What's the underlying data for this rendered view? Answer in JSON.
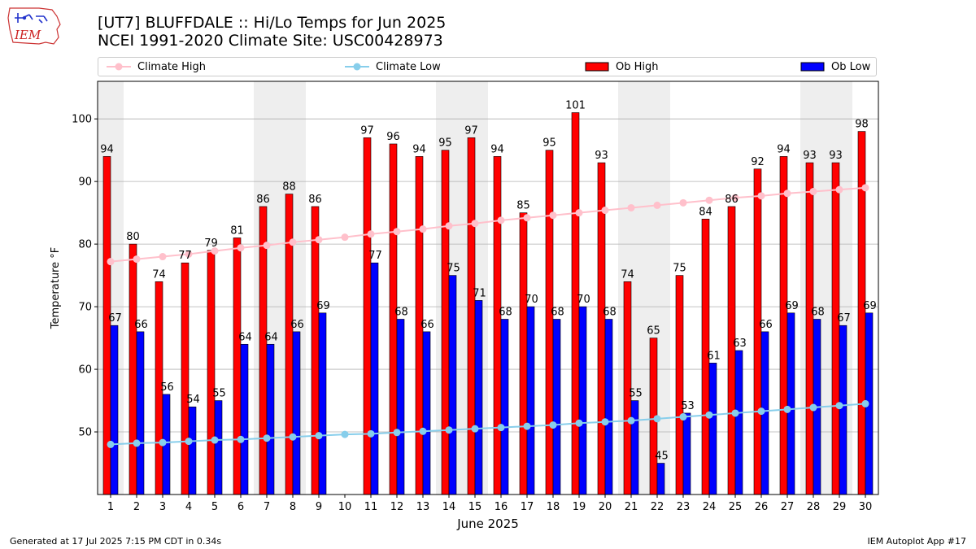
{
  "logo": {
    "text": "IEM"
  },
  "title_line1": "[UT7] BLUFFDALE  :: Hi/Lo Temps for Jun 2025",
  "title_line2": "NCEI 1991-2020 Climate Site: USC00428973",
  "footer": {
    "left": "Generated at 17 Jul 2025 7:15 PM CDT in 0.34s",
    "right": "IEM Autoplot App #17"
  },
  "colors": {
    "ob_high": "#ff0000",
    "ob_low": "#0000ff",
    "climate_high": "#ffc0cb",
    "climate_low": "#87ceeb",
    "weekend_shading": "#eeeeee",
    "grid": "#b0b0b0"
  },
  "chart_data": {
    "type": "bar",
    "xlabel": "June 2025",
    "ylabel": "Temperature °F",
    "ylim": [
      40,
      106
    ],
    "yticks": [
      50,
      60,
      70,
      80,
      90,
      100
    ],
    "grid": "horizontal",
    "legend_placement": "top (above plot)",
    "categories": [
      "1",
      "2",
      "3",
      "4",
      "5",
      "6",
      "7",
      "8",
      "9",
      "10",
      "11",
      "12",
      "13",
      "14",
      "15",
      "16",
      "17",
      "18",
      "19",
      "20",
      "21",
      "22",
      "23",
      "24",
      "25",
      "26",
      "27",
      "28",
      "29",
      "30"
    ],
    "shaded_days": [
      1,
      7,
      8,
      14,
      15,
      21,
      22,
      28,
      29
    ],
    "series": [
      {
        "name": "Climate High",
        "kind": "line",
        "values": [
          77.2,
          77.6,
          78.0,
          78.4,
          78.9,
          79.4,
          79.8,
          80.3,
          80.7,
          81.1,
          81.6,
          82.0,
          82.4,
          82.9,
          83.3,
          83.8,
          84.2,
          84.6,
          85.0,
          85.4,
          85.8,
          86.2,
          86.6,
          87.0,
          87.4,
          87.7,
          88.1,
          88.4,
          88.7,
          89.0
        ]
      },
      {
        "name": "Climate Low",
        "kind": "line",
        "values": [
          48.0,
          48.2,
          48.3,
          48.5,
          48.7,
          48.8,
          49.0,
          49.2,
          49.4,
          49.6,
          49.7,
          49.9,
          50.1,
          50.3,
          50.5,
          50.7,
          50.9,
          51.1,
          51.4,
          51.6,
          51.8,
          52.1,
          52.4,
          52.7,
          53.0,
          53.3,
          53.6,
          53.9,
          54.2,
          54.5
        ]
      },
      {
        "name": "Ob High",
        "kind": "bar",
        "values": [
          94,
          80,
          74,
          77,
          79,
          81,
          86,
          88,
          86,
          null,
          97,
          96,
          94,
          95,
          97,
          94,
          85,
          95,
          101,
          93,
          74,
          65,
          75,
          84,
          86,
          92,
          94,
          93,
          93,
          98
        ]
      },
      {
        "name": "Ob Low",
        "kind": "bar",
        "values": [
          67,
          66,
          56,
          54,
          55,
          64,
          64,
          66,
          69,
          null,
          77,
          68,
          66,
          75,
          71,
          68,
          70,
          68,
          70,
          68,
          55,
          45,
          53,
          61,
          63,
          66,
          69,
          68,
          67,
          69
        ]
      }
    ]
  }
}
